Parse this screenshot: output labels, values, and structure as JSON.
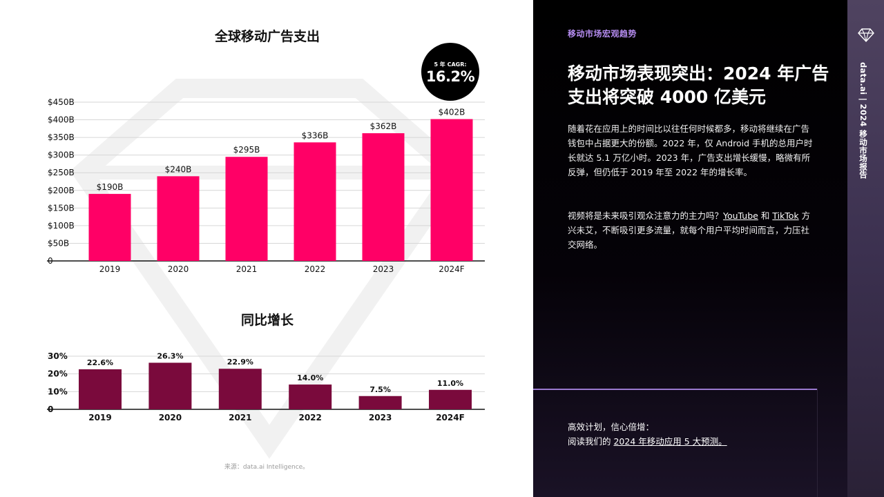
{
  "charts": {
    "spend_title": "全球移动广告支出",
    "growth_title": "同比增长",
    "cagr_label": "5 年 CAGR:",
    "cagr_value": "16.2%"
  },
  "chart_data": [
    {
      "type": "bar",
      "title": "全球移动广告支出",
      "categories": [
        "2019",
        "2020",
        "2021",
        "2022",
        "2023",
        "2024F"
      ],
      "values": [
        190,
        240,
        295,
        336,
        362,
        402
      ],
      "value_labels": [
        "$190B",
        "$240B",
        "$295B",
        "$336B",
        "$362B",
        "$402B"
      ],
      "ylim": [
        0,
        450
      ],
      "y_ticks": [
        "0",
        "$50B",
        "$100B",
        "$150B",
        "$200B",
        "$250B",
        "$300B",
        "$350B",
        "$400B",
        "$450B"
      ],
      "grid": true,
      "color": "#ff0066"
    },
    {
      "type": "bar",
      "title": "同比增长",
      "categories": [
        "2019",
        "2020",
        "2021",
        "2022",
        "2023",
        "2024F"
      ],
      "values": [
        22.6,
        26.3,
        22.9,
        14.0,
        7.5,
        11.0
      ],
      "value_labels": [
        "22.6%",
        "26.3%",
        "22.9%",
        "14.0%",
        "7.5%",
        "11.0%"
      ],
      "ylim": [
        0,
        30
      ],
      "y_ticks": [
        "0",
        "10%",
        "20%",
        "30%"
      ],
      "grid": true,
      "color": "#7a0a3c"
    }
  ],
  "source": "来源：data.ai Intelligence。",
  "right": {
    "section_tag": "移动市场宏观趋势",
    "headline": "移动市场表现突出：2024 年广告支出将突破 4000 亿美元",
    "para1": "随着花在应用上的时间比以往任何时候都多，移动将继续在广告钱包中占据更大的份额。2022 年，仅 Android 手机的总用户时长就达 5.1 万亿小时。2023 年，广告支出增长缓慢，略微有所反弹，但仍低于 2019 年至 2022 年的增长率。",
    "para2_a": "视频将是未来吸引观众注意力的主力吗？",
    "link_youtube": "YouTube",
    "para2_b": " 和 ",
    "link_tiktok": "TikTok",
    "para2_c": " 方兴未艾，不断吸引更多流量，就每个用户平均时间而言，力压社交网络。",
    "cta_line1": "高效计划，信心倍增：",
    "cta_prefix": "阅读我们的 ",
    "cta_link": "2024 年移动应用 5 大预测。"
  },
  "side": {
    "logo_icon": "diamond-icon",
    "text": "data.ai | 2024 移动市场报告"
  }
}
